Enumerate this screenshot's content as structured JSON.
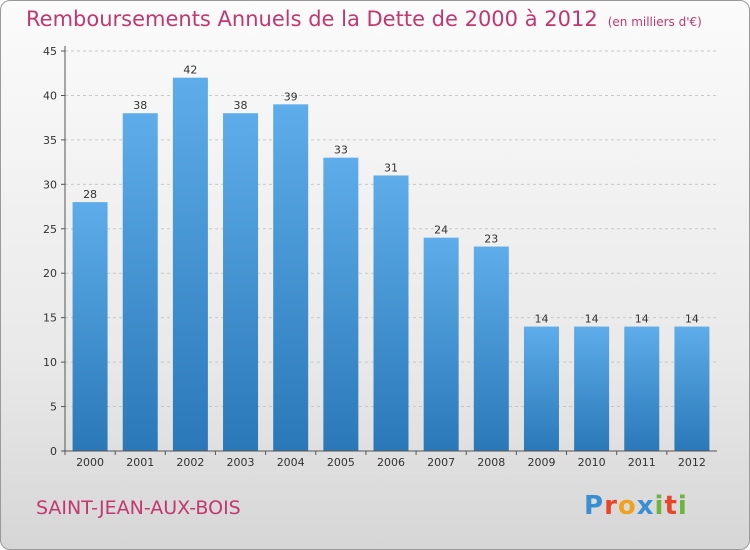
{
  "header": {
    "title": "Remboursements Annuels de la Dette de 2000 à 2012",
    "unit": "(en milliers d'€)"
  },
  "footer": {
    "commune": "SAINT-JEAN-AUX-BOIS",
    "logo": {
      "letters": [
        "P",
        "r",
        "o",
        "x",
        "i",
        "t",
        "i"
      ],
      "colors": [
        "#3a8fd4",
        "#e8462a",
        "#f0a21f",
        "#3a8fd4",
        "#6cb33f",
        "#e8462a",
        "#6cb33f"
      ]
    }
  },
  "colors": {
    "accent": "#c2386e",
    "bar_top": "#5eadea",
    "bar_bottom": "#2a78b8",
    "grid": "#c8c8c8"
  },
  "chart_data": {
    "type": "bar",
    "categories": [
      "2000",
      "2001",
      "2002",
      "2003",
      "2004",
      "2005",
      "2006",
      "2007",
      "2008",
      "2009",
      "2010",
      "2011",
      "2012"
    ],
    "values": [
      28,
      38,
      42,
      38,
      39,
      33,
      31,
      24,
      23,
      14,
      14,
      14,
      14
    ],
    "yticks": [
      0,
      5,
      10,
      15,
      20,
      25,
      30,
      35,
      40,
      45
    ],
    "ylim": [
      0,
      45
    ],
    "grid": true,
    "data_labels": true
  }
}
